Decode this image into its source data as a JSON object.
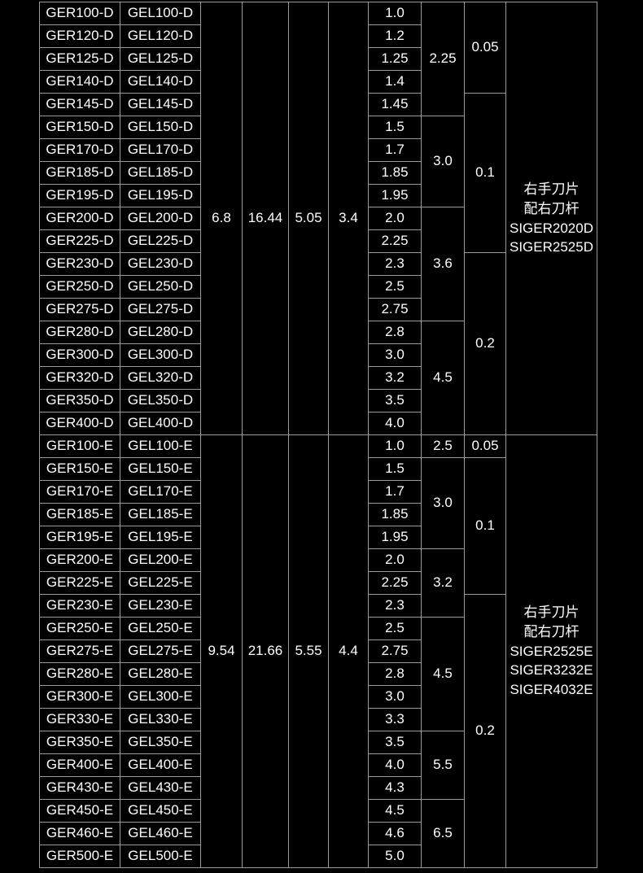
{
  "table": {
    "background_color": "#000000",
    "border_color": "#9a9a9a",
    "text_color": "#ffffff",
    "font_size": 17,
    "sections": [
      {
        "col2": "6.8",
        "col3": "16.44",
        "col4": "5.05",
        "col5": "3.4",
        "info": "右手刀片\n配右刀杆\nSIGER2020D\nSIGER2525D",
        "rows": [
          {
            "c0": "GER100-D",
            "c1": "GEL100-D",
            "c6": "1.0"
          },
          {
            "c0": "GER120-D",
            "c1": "GEL120-D",
            "c6": "1.2"
          },
          {
            "c0": "GER125-D",
            "c1": "GEL125-D",
            "c6": "1.25"
          },
          {
            "c0": "GER140-D",
            "c1": "GEL140-D",
            "c6": "1.4"
          },
          {
            "c0": "GER145-D",
            "c1": "GEL145-D",
            "c6": "1.45"
          },
          {
            "c0": "GER150-D",
            "c1": "GEL150-D",
            "c6": "1.5"
          },
          {
            "c0": "GER170-D",
            "c1": "GEL170-D",
            "c6": "1.7"
          },
          {
            "c0": "GER185-D",
            "c1": "GEL185-D",
            "c6": "1.85"
          },
          {
            "c0": "GER195-D",
            "c1": "GEL195-D",
            "c6": "1.95"
          },
          {
            "c0": "GER200-D",
            "c1": "GEL200-D",
            "c6": "2.0"
          },
          {
            "c0": "GER225-D",
            "c1": "GEL225-D",
            "c6": "2.25"
          },
          {
            "c0": "GER230-D",
            "c1": "GEL230-D",
            "c6": "2.3"
          },
          {
            "c0": "GER250-D",
            "c1": "GEL250-D",
            "c6": "2.5"
          },
          {
            "c0": "GER275-D",
            "c1": "GEL275-D",
            "c6": "2.75"
          },
          {
            "c0": "GER280-D",
            "c1": "GEL280-D",
            "c6": "2.8"
          },
          {
            "c0": "GER300-D",
            "c1": "GEL300-D",
            "c6": "3.0"
          },
          {
            "c0": "GER320-D",
            "c1": "GEL320-D",
            "c6": "3.2"
          },
          {
            "c0": "GER350-D",
            "c1": "GEL350-D",
            "c6": "3.5"
          },
          {
            "c0": "GER400-D",
            "c1": "GEL400-D",
            "c6": "4.0"
          }
        ],
        "col7_spans": [
          {
            "start": 0,
            "span": 5,
            "val": "2.25"
          },
          {
            "start": 5,
            "span": 4,
            "val": "3.0"
          },
          {
            "start": 9,
            "span": 5,
            "val": "3.6"
          },
          {
            "start": 14,
            "span": 5,
            "val": "4.5"
          }
        ],
        "col8_spans": [
          {
            "start": 0,
            "span": 4,
            "val": "0.05"
          },
          {
            "start": 4,
            "span": 7,
            "val": "0.1"
          },
          {
            "start": 11,
            "span": 8,
            "val": "0.2"
          }
        ]
      },
      {
        "col2": "9.54",
        "col3": "21.66",
        "col4": "5.55",
        "col5": "4.4",
        "info": "右手刀片\n配右刀杆\nSIGER2525E\nSIGER3232E\nSIGER4032E",
        "rows": [
          {
            "c0": "GER100-E",
            "c1": "GEL100-E",
            "c6": "1.0"
          },
          {
            "c0": "GER150-E",
            "c1": "GEL150-E",
            "c6": "1.5"
          },
          {
            "c0": "GER170-E",
            "c1": "GEL170-E",
            "c6": "1.7"
          },
          {
            "c0": "GER185-E",
            "c1": "GEL185-E",
            "c6": "1.85"
          },
          {
            "c0": "GER195-E",
            "c1": "GEL195-E",
            "c6": "1.95"
          },
          {
            "c0": "GER200-E",
            "c1": "GEL200-E",
            "c6": "2.0"
          },
          {
            "c0": "GER225-E",
            "c1": "GEL225-E",
            "c6": "2.25"
          },
          {
            "c0": "GER230-E",
            "c1": "GEL230-E",
            "c6": "2.3"
          },
          {
            "c0": "GER250-E",
            "c1": "GEL250-E",
            "c6": "2.5"
          },
          {
            "c0": "GER275-E",
            "c1": "GEL275-E",
            "c6": "2.75"
          },
          {
            "c0": "GER280-E",
            "c1": "GEL280-E",
            "c6": "2.8"
          },
          {
            "c0": "GER300-E",
            "c1": "GEL300-E",
            "c6": "3.0"
          },
          {
            "c0": "GER330-E",
            "c1": "GEL330-E",
            "c6": "3.3"
          },
          {
            "c0": "GER350-E",
            "c1": "GEL350-E",
            "c6": "3.5"
          },
          {
            "c0": "GER400-E",
            "c1": "GEL400-E",
            "c6": "4.0"
          },
          {
            "c0": "GER430-E",
            "c1": "GEL430-E",
            "c6": "4.3"
          },
          {
            "c0": "GER450-E",
            "c1": "GEL450-E",
            "c6": "4.5"
          },
          {
            "c0": "GER460-E",
            "c1": "GEL460-E",
            "c6": "4.6"
          },
          {
            "c0": "GER500-E",
            "c1": "GEL500-E",
            "c6": "5.0"
          }
        ],
        "col7_spans": [
          {
            "start": 0,
            "span": 1,
            "val": "2.5"
          },
          {
            "start": 1,
            "span": 4,
            "val": "3.0"
          },
          {
            "start": 5,
            "span": 3,
            "val": "3.2"
          },
          {
            "start": 8,
            "span": 5,
            "val": "4.5"
          },
          {
            "start": 13,
            "span": 3,
            "val": "5.5"
          },
          {
            "start": 16,
            "span": 3,
            "val": "6.5"
          }
        ],
        "col8_spans": [
          {
            "start": 0,
            "span": 1,
            "val": "0.05"
          },
          {
            "start": 1,
            "span": 6,
            "val": "0.1"
          },
          {
            "start": 7,
            "span": 12,
            "val": "0.2"
          }
        ]
      }
    ]
  }
}
